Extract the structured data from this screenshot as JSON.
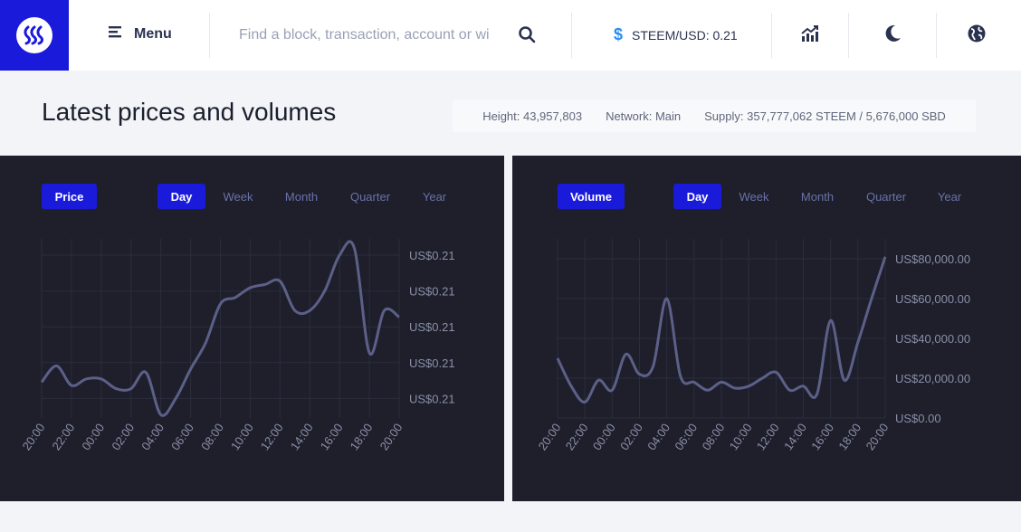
{
  "header": {
    "menu_label": "Menu",
    "search_placeholder": "Find a block, transaction, account or wi",
    "ticker": "STEEM/USD: 0.21"
  },
  "main": {
    "title": "Latest prices and volumes",
    "stats": {
      "height": "Height: 43,957,803",
      "network": "Network: Main",
      "supply": "Supply: 357,777,062 STEEM / 5,676,000 SBD"
    }
  },
  "colors": {
    "brand": "#1a1adb",
    "panel_bg": "#1e1f2b",
    "line": "#5c6088",
    "tab_text": "#6a72a8"
  },
  "price_panel": {
    "title_button": "Price",
    "tabs": [
      "Day",
      "Week",
      "Month",
      "Quarter",
      "Year"
    ],
    "active_tab": "Day"
  },
  "volume_panel": {
    "title_button": "Volume",
    "tabs": [
      "Day",
      "Week",
      "Month",
      "Quarter",
      "Year"
    ],
    "active_tab": "Day"
  },
  "chart_data": [
    {
      "type": "line",
      "title": "",
      "xlabel": "",
      "ylabel": "",
      "x": [
        "20:00",
        "21:00",
        "22:00",
        "23:00",
        "00:00",
        "01:00",
        "02:00",
        "03:00",
        "04:00",
        "05:00",
        "06:00",
        "07:00",
        "08:00",
        "09:00",
        "10:00",
        "11:00",
        "12:00",
        "13:00",
        "14:00",
        "15:00",
        "16:00",
        "17:00",
        "18:00",
        "19:00",
        "20:00"
      ],
      "tick_labels": [
        "20:00",
        "22:00",
        "00:00",
        "02:00",
        "04:00",
        "06:00",
        "08:00",
        "10:00",
        "12:00",
        "14:00",
        "16:00",
        "18:00",
        "20:00"
      ],
      "y_tick_labels": [
        "US$0.21",
        "US$0.21",
        "US$0.21",
        "US$0.21",
        "US$0.21"
      ],
      "y_ticks": [
        0.2107,
        0.2096,
        0.2085,
        0.2074,
        0.2063
      ],
      "ylim": [
        0.2057,
        0.2112
      ],
      "series": [
        {
          "values": [
            0.2068,
            0.2073,
            0.2067,
            0.2069,
            0.2069,
            0.2066,
            0.2066,
            0.2071,
            0.2058,
            0.2063,
            0.2072,
            0.208,
            0.2092,
            0.2094,
            0.2097,
            0.2098,
            0.2099,
            0.209,
            0.209,
            0.2096,
            0.2107,
            0.2109,
            0.2077,
            0.209,
            0.2088
          ]
        }
      ],
      "grid": true
    },
    {
      "type": "line",
      "title": "",
      "xlabel": "",
      "ylabel": "",
      "x": [
        "20:00",
        "21:00",
        "22:00",
        "23:00",
        "00:00",
        "01:00",
        "02:00",
        "03:00",
        "04:00",
        "05:00",
        "06:00",
        "07:00",
        "08:00",
        "09:00",
        "10:00",
        "11:00",
        "12:00",
        "13:00",
        "14:00",
        "15:00",
        "16:00",
        "17:00",
        "18:00",
        "19:00",
        "20:00"
      ],
      "tick_labels": [
        "20:00",
        "22:00",
        "00:00",
        "02:00",
        "04:00",
        "06:00",
        "08:00",
        "10:00",
        "12:00",
        "14:00",
        "16:00",
        "18:00",
        "20:00"
      ],
      "y_tick_labels": [
        "US$80,000.00",
        "US$60,000.00",
        "US$40,000.00",
        "US$20,000.00",
        "US$0.00"
      ],
      "y_ticks": [
        80000,
        60000,
        40000,
        20000,
        0
      ],
      "ylim": [
        0,
        90000
      ],
      "series": [
        {
          "values": [
            30000,
            16000,
            8000,
            19000,
            14000,
            32000,
            22000,
            26000,
            60000,
            21000,
            18000,
            14000,
            18000,
            15000,
            16000,
            20000,
            23000,
            14000,
            16000,
            12000,
            49000,
            19000,
            38000,
            60000,
            81000
          ]
        }
      ],
      "grid": true
    }
  ]
}
